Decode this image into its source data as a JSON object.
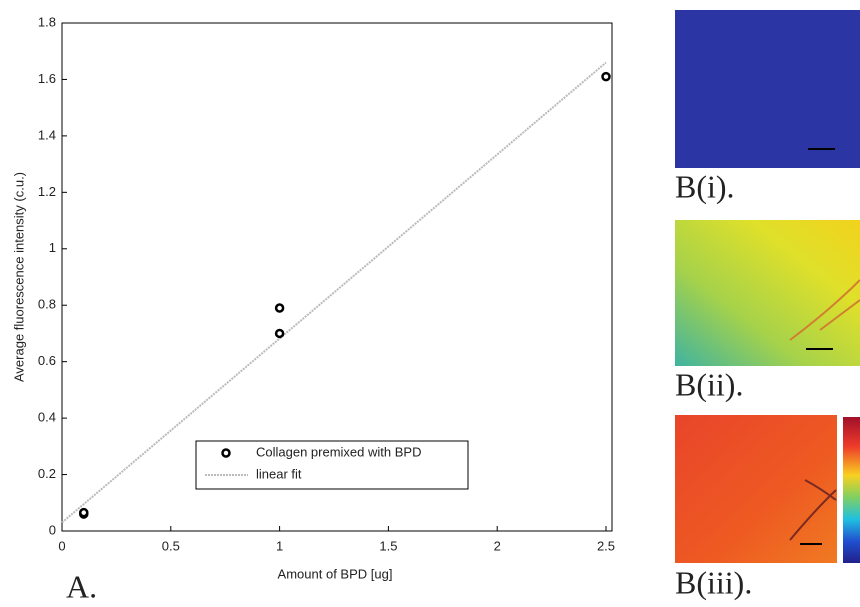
{
  "chart_data": {
    "type": "scatter",
    "xlabel": "Amount of BPD [ug]",
    "ylabel": "Average fluorescence intensity (c.u.)",
    "xlim": [
      0,
      2.5
    ],
    "ylim": [
      0,
      1.8
    ],
    "xticks": [
      0,
      0.5,
      1,
      1.5,
      2,
      2.5
    ],
    "yticks": [
      0,
      0.2,
      0.4,
      0.6,
      0.8,
      1,
      1.2,
      1.4,
      1.6,
      1.8
    ],
    "series": [
      {
        "name": "Collagen premixed with BPD",
        "kind": "scatter",
        "color": "#000000",
        "x": [
          0.1,
          0.1,
          1,
          1,
          2.5
        ],
        "values": [
          0.06,
          0.065,
          0.79,
          0.7,
          1.61
        ]
      },
      {
        "name": "linear fit",
        "kind": "line",
        "color": "#bbbbbb",
        "x": [
          0,
          2.5
        ],
        "values": [
          0.03,
          1.66
        ]
      }
    ],
    "annotations": [
      "A.",
      "B(i).",
      "B(ii).",
      "B(iii)."
    ]
  }
}
